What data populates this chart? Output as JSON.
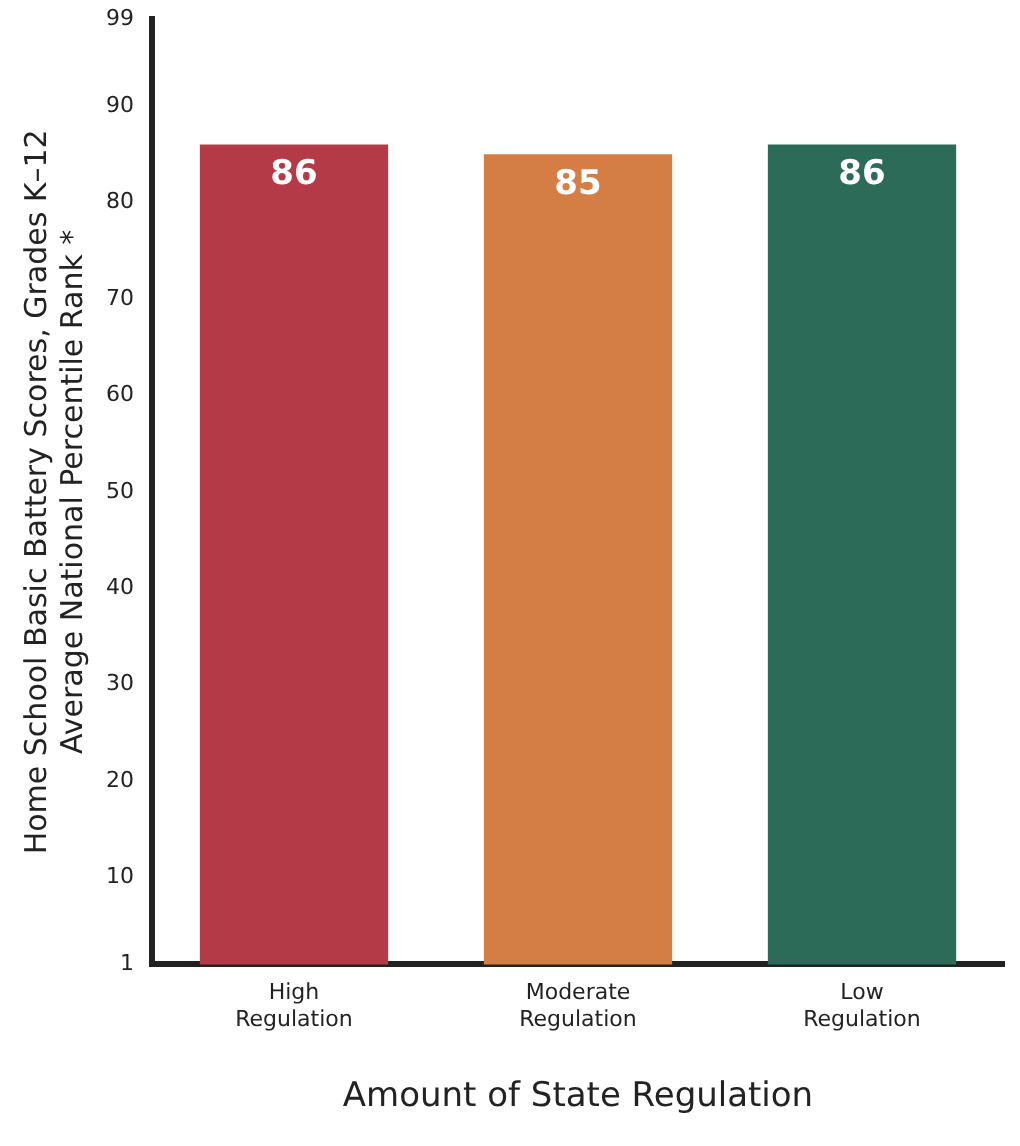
{
  "chart_data": {
    "type": "bar",
    "xlabel": "Amount of State Regulation",
    "ylabel": "Home School Basic Battery Scores, Grades K–12\nAverage National Percentile Rank *",
    "categories": [
      "High\nRegulation",
      "Moderate\nRegulation",
      "Low\nRegulation"
    ],
    "values": [
      86,
      85,
      86
    ],
    "colors": [
      "#b53a48",
      "#d47d45",
      "#2b6b57"
    ],
    "ylim": [
      1,
      99
    ],
    "yticks": [
      1,
      10,
      20,
      30,
      40,
      50,
      60,
      70,
      80,
      90,
      99
    ],
    "grid": false,
    "legend": false,
    "data_labels": true
  }
}
